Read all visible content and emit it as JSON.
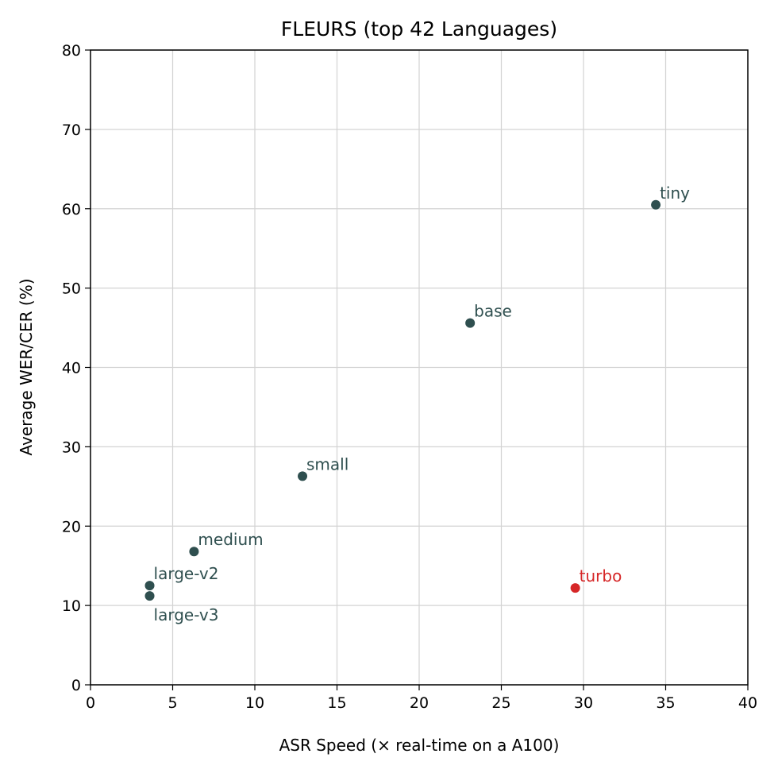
{
  "chart_data": {
    "type": "scatter",
    "title": "FLEURS (top 42 Languages)",
    "xlabel": "ASR Speed (× real-time on a A100)",
    "ylabel": "Average WER/CER (%)",
    "xlim": [
      0,
      40
    ],
    "ylim": [
      0,
      80
    ],
    "xticks": [
      0,
      5,
      10,
      15,
      20,
      25,
      30,
      35,
      40
    ],
    "yticks": [
      0,
      10,
      20,
      30,
      40,
      50,
      60,
      70,
      80
    ],
    "grid": true,
    "points": [
      {
        "label": "tiny",
        "x": 34.4,
        "y": 60.5,
        "color": "#2f4f4f"
      },
      {
        "label": "base",
        "x": 23.1,
        "y": 45.6,
        "color": "#2f4f4f"
      },
      {
        "label": "small",
        "x": 12.9,
        "y": 26.3,
        "color": "#2f4f4f"
      },
      {
        "label": "medium",
        "x": 6.3,
        "y": 16.8,
        "color": "#2f4f4f"
      },
      {
        "label": "large-v2",
        "x": 3.6,
        "y": 12.5,
        "color": "#2f4f4f"
      },
      {
        "label": "large-v3",
        "x": 3.6,
        "y": 11.2,
        "color": "#2f4f4f"
      },
      {
        "label": "turbo",
        "x": 29.5,
        "y": 12.2,
        "color": "#d62728"
      }
    ]
  }
}
